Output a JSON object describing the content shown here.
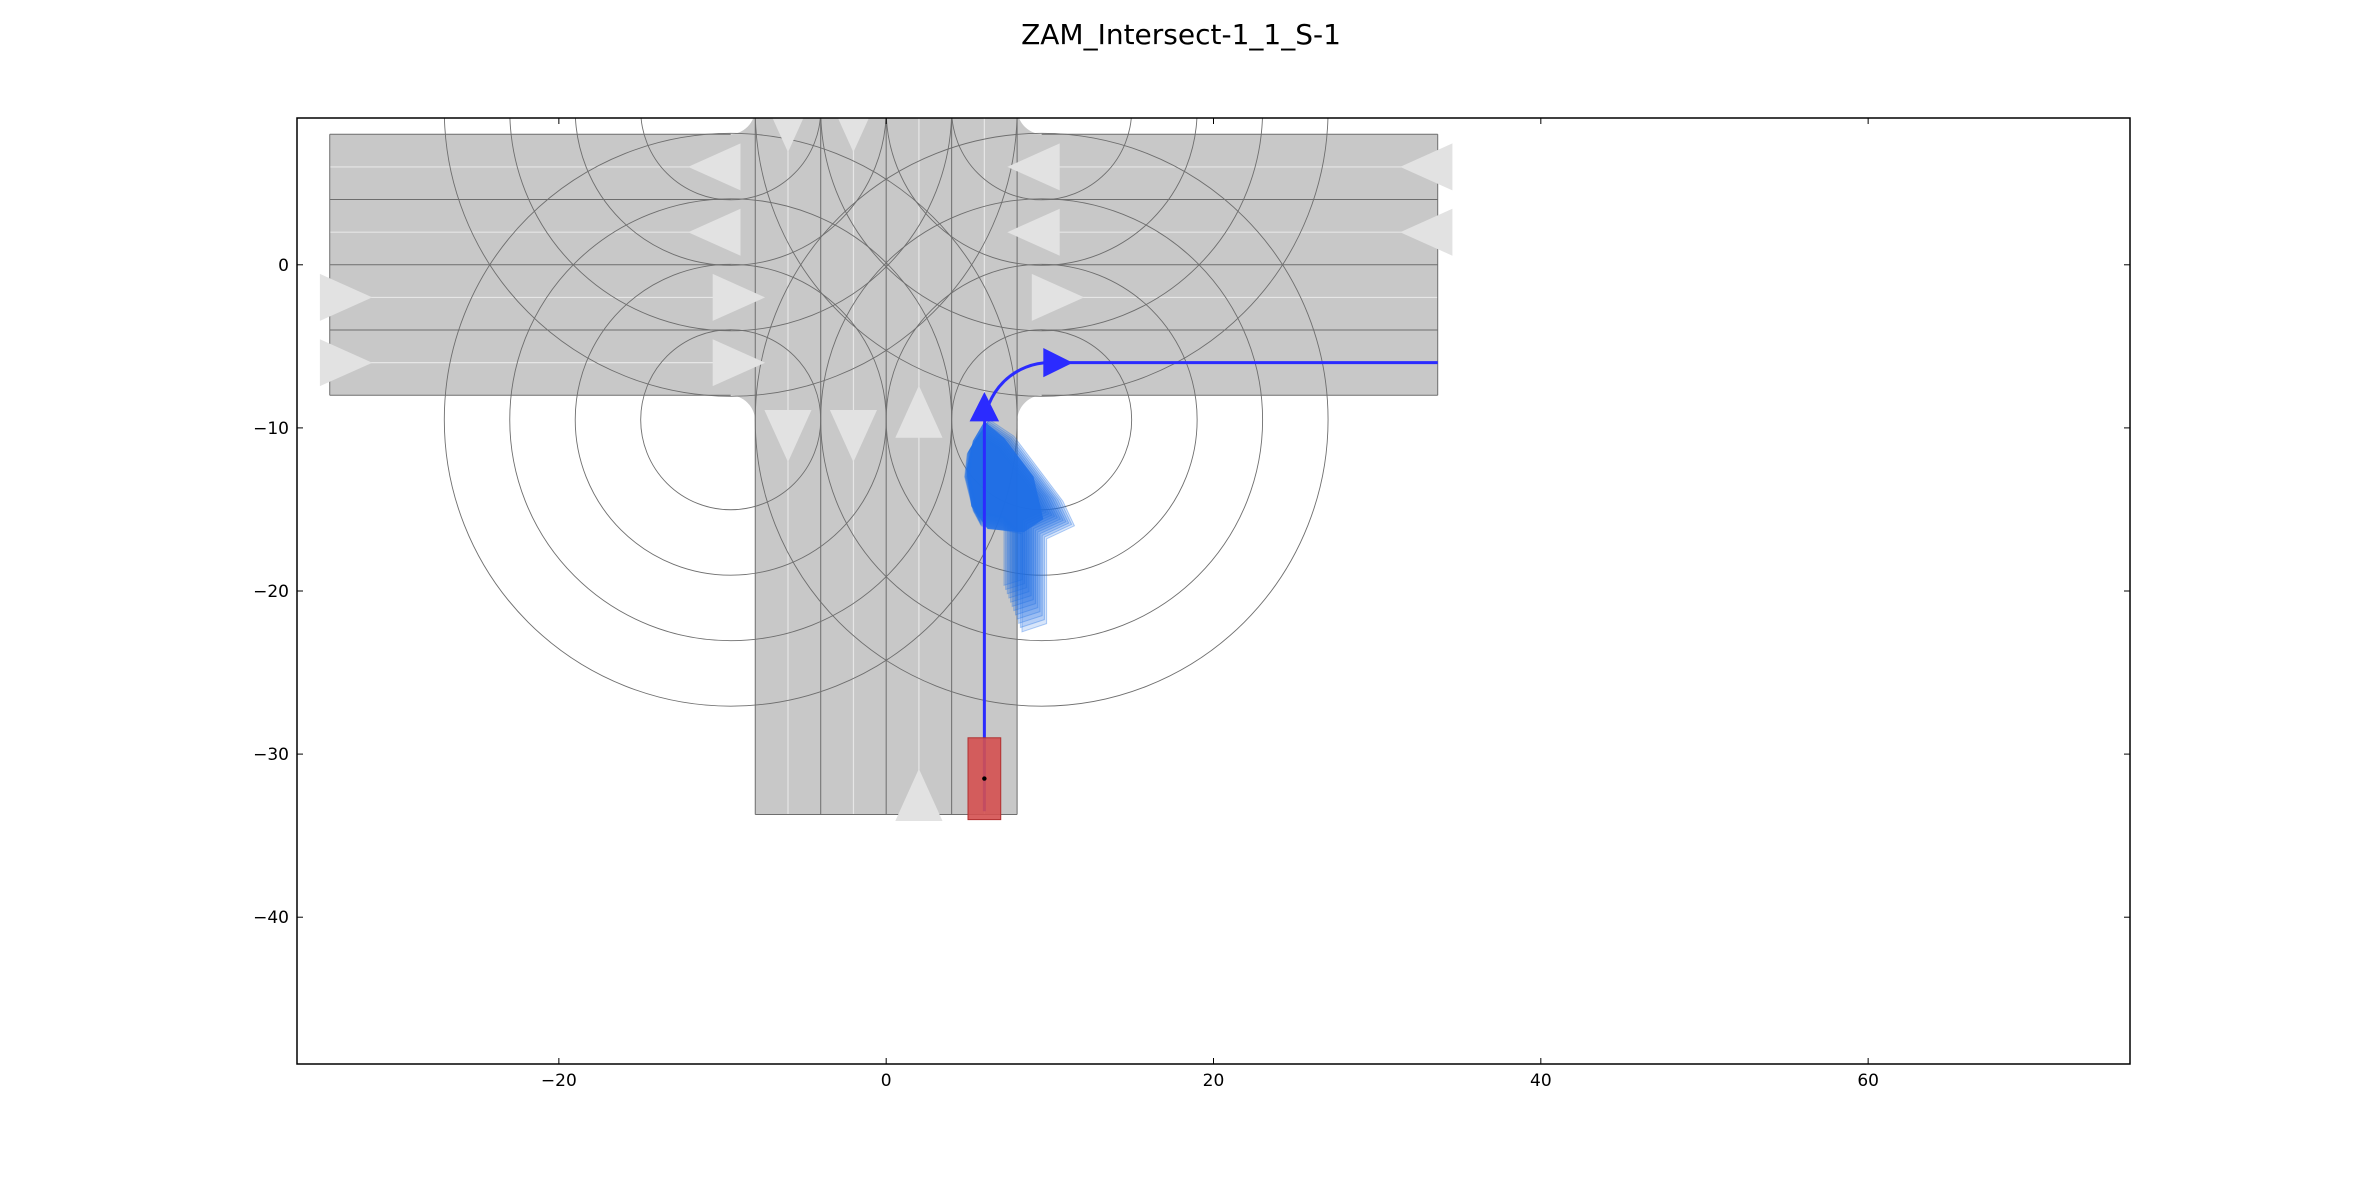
{
  "title": "ZAM_Intersect-1_1_S-1",
  "axes": {
    "x_range": [
      -36,
      76
    ],
    "y_range": [
      -49,
      9
    ],
    "x_ticks": [
      {
        "value": -20,
        "label": "−20"
      },
      {
        "value": 0,
        "label": "0"
      },
      {
        "value": 20,
        "label": "20"
      },
      {
        "value": 40,
        "label": "40"
      },
      {
        "value": 60,
        "label": "60"
      }
    ],
    "y_ticks": [
      {
        "value": 0,
        "label": "0"
      },
      {
        "value": -10,
        "label": "−10"
      },
      {
        "value": -20,
        "label": "−20"
      },
      {
        "value": -30,
        "label": "−30"
      },
      {
        "value": -40,
        "label": "−40"
      }
    ]
  },
  "colors": {
    "road": "#c8c8c8",
    "lane_line": "#6e6e6e",
    "lane_center": "#e6e6e6",
    "arrow": "#e2e2e2",
    "route": "#2b2bff",
    "vehicle": "#d45050",
    "occupancy": "#1f6fe6"
  },
  "ego_vehicle": {
    "x": 6,
    "y": -31.5,
    "length": 5,
    "width": 2
  },
  "route": {
    "start": [
      6,
      -33.5
    ],
    "turn_radius": 4,
    "end": [
      33.7,
      -6
    ]
  },
  "occupancy": {
    "steps": 12
  }
}
